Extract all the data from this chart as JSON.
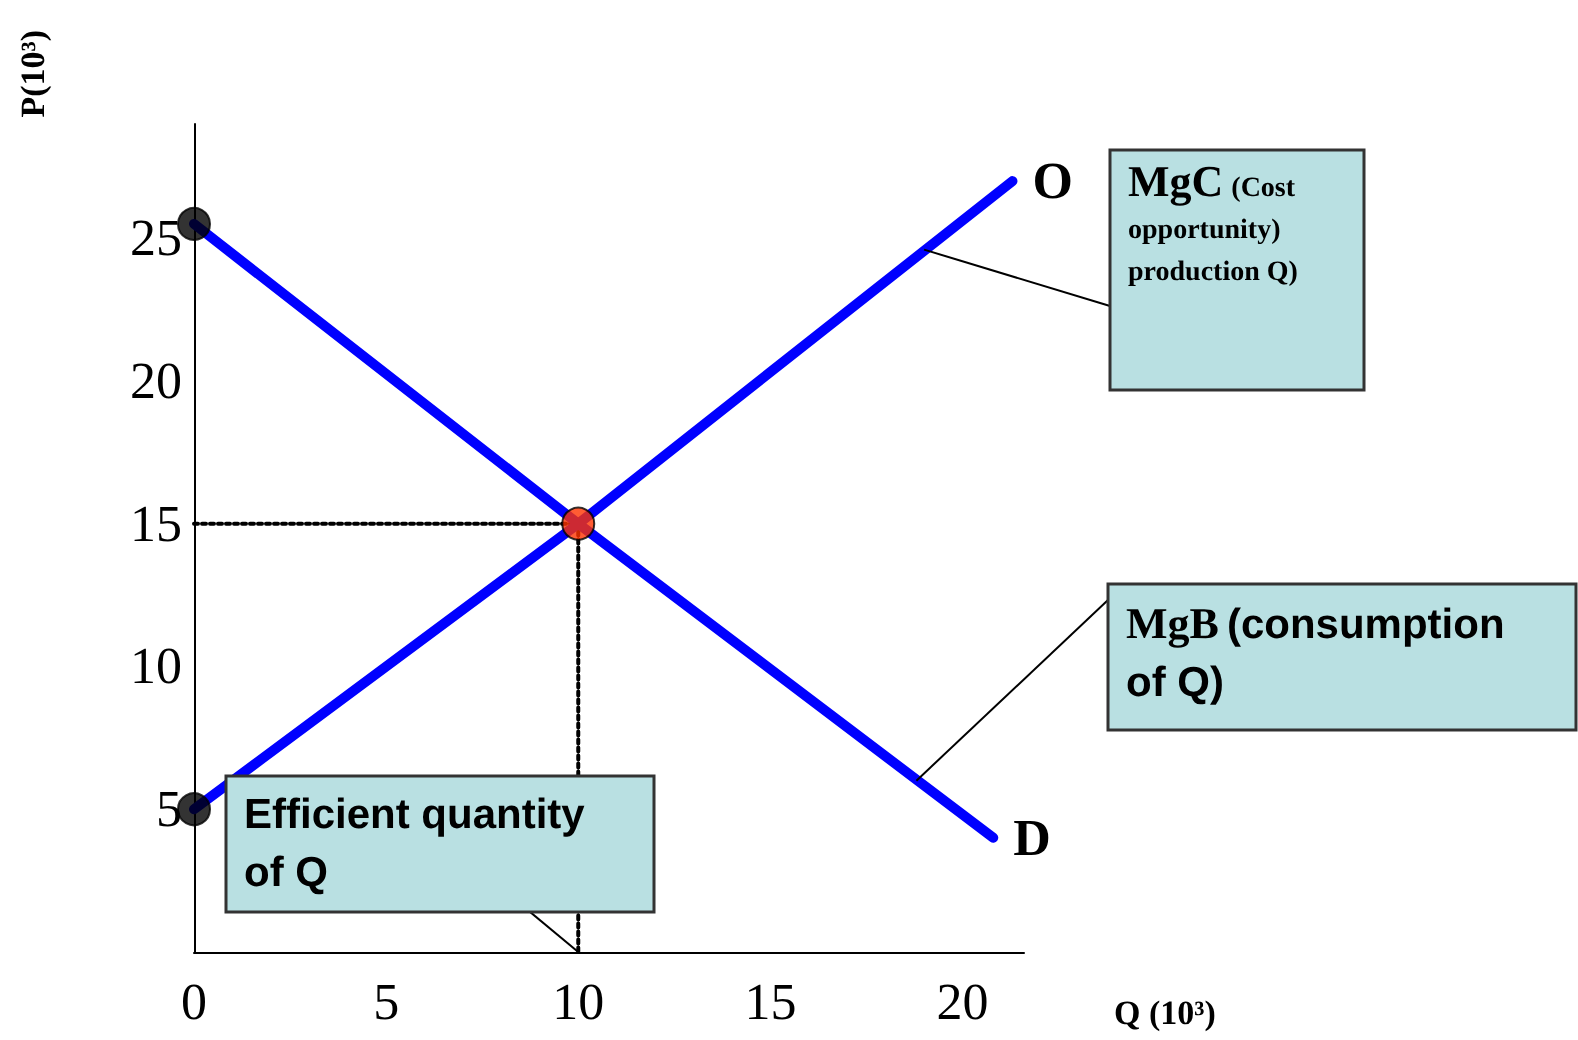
{
  "chart_data": {
    "type": "line",
    "ylabel": "P(10³)",
    "xlabel": "Q (10³)",
    "xlim": [
      0,
      21.6
    ],
    "xticks": [
      0,
      5,
      10,
      15,
      20
    ],
    "ylim": [
      0,
      29
    ],
    "yticks": [
      5,
      10,
      15,
      20,
      25
    ],
    "grid": false,
    "series": [
      {
        "name": "O",
        "color": "#0000ff",
        "x": [
          0,
          10,
          21.3
        ],
        "values": [
          5,
          15,
          27
        ],
        "marker": "none",
        "line_style": "solid"
      },
      {
        "name": "D",
        "color": "#0000ff",
        "x": [
          0,
          10,
          20.8
        ],
        "values": [
          25.5,
          15,
          4
        ],
        "marker": "none",
        "line_style": "solid"
      },
      {
        "type": "line",
        "color": "#000000",
        "x": [
          0,
          10,
          10
        ],
        "values": [
          15,
          15,
          0
        ],
        "marker": "none",
        "line_style": "dotted"
      },
      {
        "type": "scatter",
        "color": "#000000",
        "x": [
          0,
          0
        ],
        "values": [
          25.5,
          5
        ],
        "marker": "circle"
      },
      {
        "type": "scatter",
        "color": "#ff3300",
        "x": [
          10
        ],
        "values": [
          15
        ],
        "marker": "circle"
      }
    ],
    "annotations": [
      {
        "text": "MgC (Cost opportunity) production Q)",
        "x": 19,
        "y": 24.6
      },
      {
        "text": "MgB (consumption of Q)",
        "x": 18.8,
        "y": 6
      },
      {
        "text": "Efficient quantity of Q",
        "x": 10,
        "y": 0
      }
    ]
  }
}
